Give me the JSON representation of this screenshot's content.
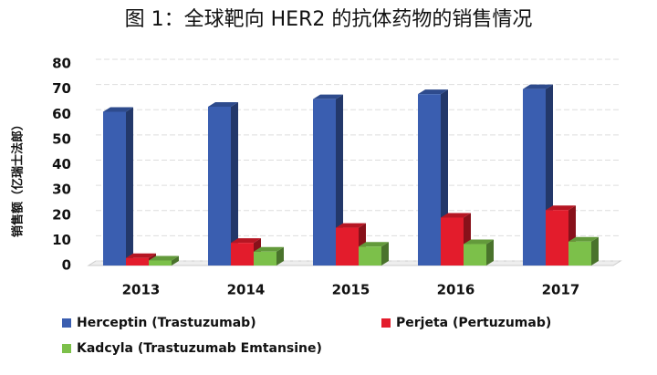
{
  "chart_data": {
    "type": "bar3d",
    "title": "图 1：全球靶向 HER2 的抗体药物的销售情况",
    "y_label": "销售额（亿瑞士法郎）",
    "categories": [
      "2013",
      "2014",
      "2015",
      "2016",
      "2017"
    ],
    "series": [
      {
        "name": "Herceptin (Trastuzumab)",
        "color": "#3a5eb0",
        "values": [
          61,
          63,
          66,
          68,
          70
        ]
      },
      {
        "name": "Perjeta (Pertuzumab)",
        "color": "#e31c2c",
        "values": [
          3,
          9,
          15,
          19,
          22
        ]
      },
      {
        "name": "Kadcyla (Trastuzumab Emtansine)",
        "color": "#7cc04a",
        "values": [
          2,
          5.5,
          7.5,
          8.5,
          9.5
        ]
      }
    ],
    "ylim": [
      0,
      80
    ],
    "yticks": [
      0,
      10,
      20,
      30,
      40,
      50,
      60,
      70,
      80
    ],
    "grid": true
  }
}
